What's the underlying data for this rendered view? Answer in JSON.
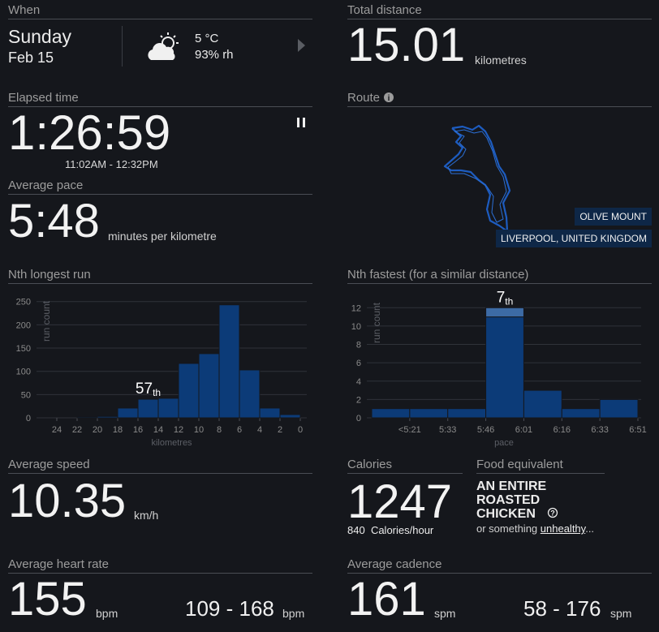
{
  "when": {
    "label": "When",
    "day": "Sunday",
    "date": "Feb 15",
    "temperature": "5 °C",
    "humidity": "93% rh"
  },
  "total_distance": {
    "label": "Total distance",
    "value": 15.01,
    "unit": "kilometres"
  },
  "elapsed_time": {
    "label": "Elapsed time",
    "value": "1:26:59",
    "range": "11:02AM - 12:32PM"
  },
  "average_pace": {
    "label": "Average pace",
    "value": "5:48",
    "unit": "minutes per kilometre"
  },
  "route": {
    "label": "Route",
    "place": "OLIVE MOUNT",
    "region": "LIVERPOOL, UNITED KINGDOM"
  },
  "longest_run": {
    "label": "Nth longest run",
    "rank": "57",
    "rank_suffix": "th",
    "chart": {
      "type": "histogram",
      "bins": [
        22,
        20,
        18,
        16,
        14,
        12,
        10,
        8,
        6,
        4,
        2,
        0
      ],
      "values": [
        2,
        3,
        21,
        40,
        42,
        117,
        138,
        243,
        103,
        21,
        7
      ],
      "color": "#0c3b78",
      "xlim": [
        26,
        0
      ],
      "xticks": [
        24,
        22,
        20,
        18,
        16,
        14,
        12,
        10,
        8,
        6,
        4,
        2,
        0
      ],
      "ylim": [
        0,
        260
      ],
      "yticks": [
        0,
        50,
        100,
        150,
        200,
        250
      ],
      "xlabel": "kilometres",
      "ylabel": "run count",
      "grid": true
    }
  },
  "fastest_run": {
    "label": "Nth fastest (for a similar distance)",
    "rank": "7",
    "rank_suffix": "th",
    "chart": {
      "type": "stacked_histogram",
      "bins": [
        0,
        1,
        2,
        3,
        4,
        5,
        6,
        7
      ],
      "series": [
        {
          "color": "#0c3b78",
          "values": [
            1,
            1,
            1,
            11,
            3,
            1,
            2
          ]
        },
        {
          "color": "#3d6ba5",
          "values": [
            0,
            0,
            0,
            1,
            0,
            0,
            0
          ]
        }
      ],
      "xlim": [
        0,
        7
      ],
      "xticks": [
        {
          "value": 1,
          "label": "<5:21"
        },
        {
          "value": 2,
          "label": "5:33"
        },
        {
          "value": 3,
          "label": "5:46"
        },
        {
          "value": 4,
          "label": "6:01"
        },
        {
          "value": 5,
          "label": "6:16"
        },
        {
          "value": 6,
          "label": "6:33"
        },
        {
          "value": 7,
          "label": "6:51"
        }
      ],
      "ylim": [
        0,
        13
      ],
      "yticks": [
        0,
        2,
        4,
        6,
        8,
        10,
        12
      ],
      "xlabel": "pace",
      "ylabel": "run count",
      "grid": true
    }
  },
  "average_speed": {
    "label": "Average speed",
    "value": "10.35",
    "unit": "km/h"
  },
  "calories": {
    "label": "Calories",
    "value": "1247",
    "rate": "840",
    "rate_unit": "Calories/hour"
  },
  "food_equivalent": {
    "label": "Food equivalent",
    "item": "AN ENTIRE ROASTED CHICKEN",
    "note": "or something",
    "link": "unhealthy",
    "ellipsis": "..."
  },
  "average_heart_rate": {
    "label": "Average heart rate",
    "value": "155",
    "unit": "bpm",
    "range": "109 - 168",
    "range_unit": "bpm"
  },
  "average_cadence": {
    "label": "Average cadence",
    "value": "161",
    "unit": "spm",
    "range": "58 - 176",
    "range_unit": "spm"
  }
}
